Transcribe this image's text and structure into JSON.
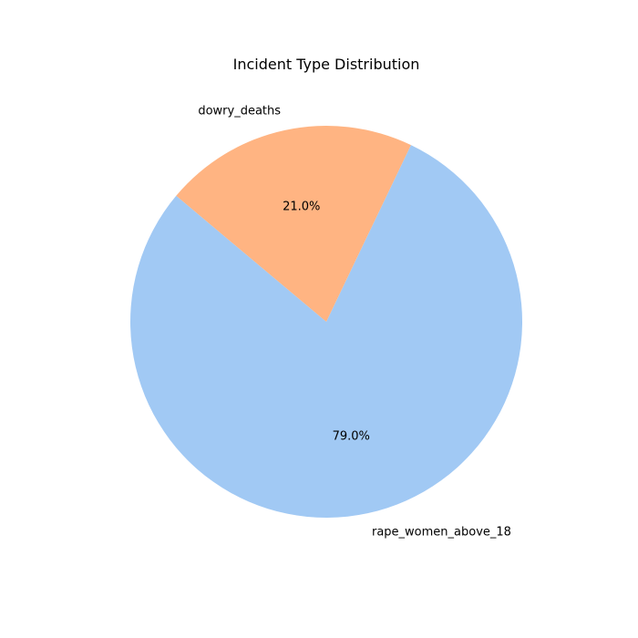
{
  "chart_data": {
    "type": "pie",
    "title": "Incident Type Distribution",
    "start_angle_deg": 140,
    "direction": "counterclockwise",
    "slices": [
      {
        "label": "rape_women_above_18",
        "value": 79.0,
        "pct_text": "79.0%",
        "color": "#a1c9f4"
      },
      {
        "label": "dowry_deaths",
        "value": 21.0,
        "pct_text": "21.0%",
        "color": "#ffb482"
      }
    ]
  }
}
